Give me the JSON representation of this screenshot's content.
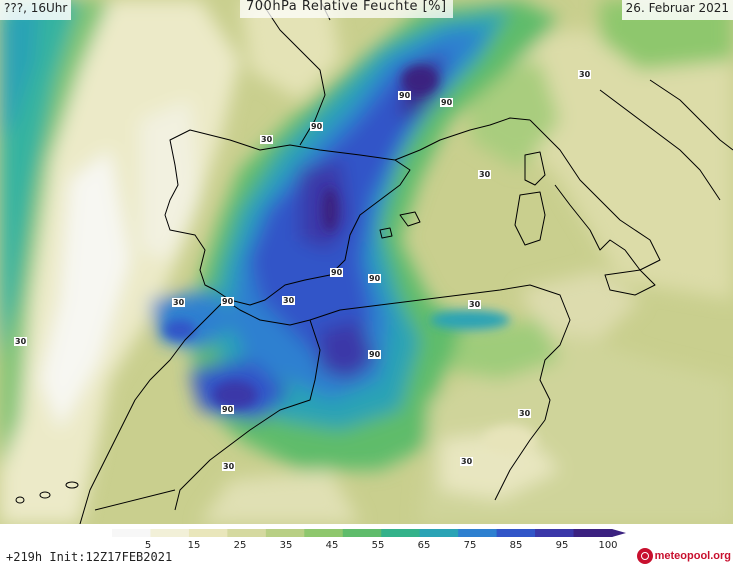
{
  "header": {
    "run_label": "???, 16Uhr",
    "title": "700hPa Relative Feuchte [%]",
    "date": "26. Februar 2021"
  },
  "contour_labels": [
    "30",
    "30",
    "30",
    "30",
    "30",
    "30",
    "30",
    "30",
    "30",
    "30",
    "90",
    "90",
    "90",
    "90",
    "90",
    "90",
    "90",
    "90"
  ],
  "legend": {
    "ticks": [
      "5",
      "15",
      "25",
      "35",
      "45",
      "55",
      "65",
      "75",
      "85",
      "95",
      "100"
    ],
    "colors": [
      "#f7f7f7",
      "#f2f0d8",
      "#e9e6bb",
      "#d5d9a0",
      "#b8cf84",
      "#8ec76d",
      "#5fbc6b",
      "#34b28a",
      "#2aa3b5",
      "#2e80d0",
      "#3155c8",
      "#3a37a8",
      "#3b2180"
    ],
    "init_text": "+219h Init:12Z17FEB2021",
    "brand": "meteopool.org"
  }
}
